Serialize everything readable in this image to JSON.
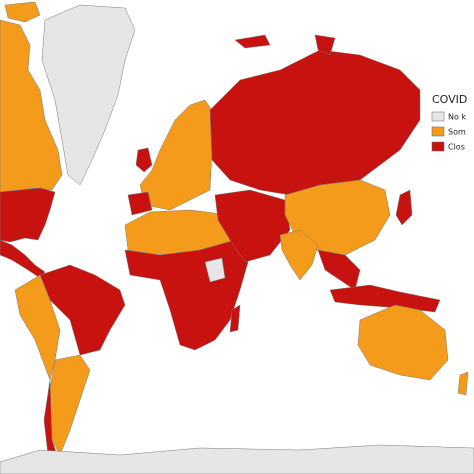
{
  "legend": {
    "title": "COVID",
    "items": [
      {
        "label": "No k",
        "color": "#e6e6e6"
      },
      {
        "label": "Som",
        "color": "#f59b1c"
      },
      {
        "label": "Clos",
        "color": "#c8120f"
      }
    ]
  }
}
